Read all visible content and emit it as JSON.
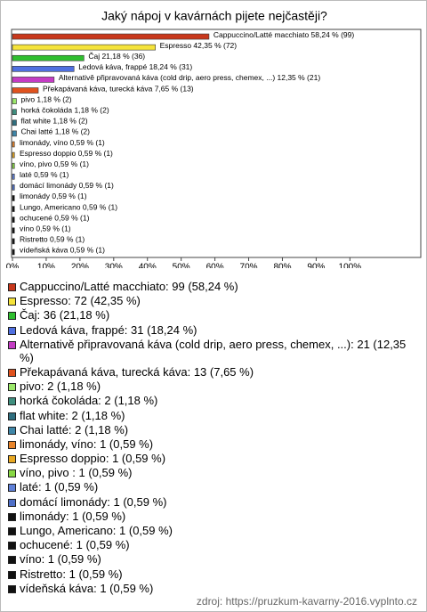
{
  "chart_data": {
    "type": "barh",
    "title": "Jaký nápoj v kavárnách pijete nejčastěji?",
    "values": [
      58.24,
      42.35,
      21.18,
      18.24,
      12.35,
      7.65,
      1.18,
      1.18,
      1.18,
      1.18,
      0.59,
      0.59,
      0.59,
      0.59,
      0.59,
      0.59,
      0.59,
      0.59,
      0.59,
      0.59,
      0.59
    ],
    "value_labels": [
      "Cappuccino/Latté macchiato 58,24 % (99)",
      "Espresso 42,35 % (72)",
      "Čaj 21,18 % (36)",
      "Ledová káva, frappé 18,24 % (31)",
      "Alternativě připravovaná káva (cold drip, aero press, chemex, ...) 12,35 % (21)",
      "Překapávaná káva, turecká káva 7,65 % (13)",
      "pivo 1,18 % (2)",
      "horká čokoláda 1,18 % (2)",
      "flat white 1,18 % (2)",
      "Chai latté 1,18 % (2)",
      "limonády, víno 0,59 % (1)",
      "Espresso doppio 0,59 % (1)",
      "víno, pivo  0,59 % (1)",
      "laté 0,59 % (1)",
      "domácí limonády 0,59 % (1)",
      "limonády 0,59 % (1)",
      "Lungo, Americano 0,59 % (1)",
      "ochucené 0,59 % (1)",
      "víno 0,59 % (1)",
      "Ristretto 0,59 % (1)",
      "vídeňská káva 0,59 % (1)"
    ],
    "legend_labels": [
      "Cappuccino/Latté macchiato: 99 (58,24 %)",
      "Espresso: 72 (42,35 %)",
      "Čaj: 36 (21,18 %)",
      "Ledová káva, frappé: 31 (18,24 %)",
      "Alternativě připravovaná káva (cold drip, aero press, chemex, ...): 21 (12,35 %)",
      "Překapávaná káva, turecká káva: 13 (7,65 %)",
      "pivo: 2 (1,18 %)",
      "horká čokoláda: 2 (1,18 %)",
      "flat white: 2 (1,18 %)",
      "Chai latté: 2 (1,18 %)",
      "limonády, víno: 1 (0,59 %)",
      "Espresso doppio: 1 (0,59 %)",
      "víno, pivo : 1 (0,59 %)",
      "laté: 1 (0,59 %)",
      "domácí limonády: 1 (0,59 %)",
      "limonády: 1 (0,59 %)",
      "Lungo, Americano: 1 (0,59 %)",
      "ochucené: 1 (0,59 %)",
      "víno: 1 (0,59 %)",
      "Ristretto: 1 (0,59 %)",
      "vídeňská káva: 1 (0,59 %)"
    ],
    "colors": [
      "#c8381c",
      "#f5e33a",
      "#2fbf2f",
      "#4f6fe0",
      "#c43cc4",
      "#e0521e",
      "#9be86a",
      "#3f8f7f",
      "#2f6f7f",
      "#3f86a8",
      "#e8842a",
      "#e8a822",
      "#88d844",
      "#5f80d8",
      "#4f70c8",
      "#111111",
      "#111111",
      "#111111",
      "#111111",
      "#111111",
      "#111111"
    ],
    "xlim": [
      0,
      121
    ],
    "xticks": [
      {
        "value": 0,
        "label": "0%"
      },
      {
        "value": 10,
        "label": "10%"
      },
      {
        "value": 20,
        "label": "20%"
      },
      {
        "value": 30,
        "label": "30%"
      },
      {
        "value": 40,
        "label": "40%"
      },
      {
        "value": 50,
        "label": "50%"
      },
      {
        "value": 60,
        "label": "60%"
      },
      {
        "value": 70,
        "label": "70%"
      },
      {
        "value": 80,
        "label": "80%"
      },
      {
        "value": 90,
        "label": "90%"
      },
      {
        "value": 100,
        "label": "100%"
      }
    ],
    "grid": false,
    "source": "zdroj: https://pruzkum-kavarny-2016.vyplnto.cz"
  }
}
